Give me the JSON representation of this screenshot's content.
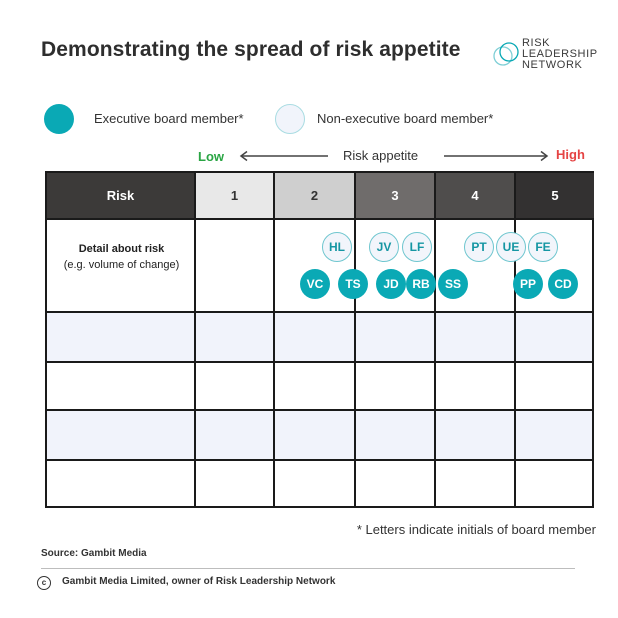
{
  "title": "Demonstrating the spread of risk appetite",
  "logo": {
    "line1": "RISK",
    "line2": "LEADERSHIP",
    "line3": "NETWORK"
  },
  "legend": {
    "executive_label": "Executive board member*",
    "nonexecutive_label": "Non-executive board member*"
  },
  "axis": {
    "low": "Low",
    "center": "Risk appetite",
    "high": "High"
  },
  "table": {
    "header": {
      "risk": "Risk",
      "levels": [
        "1",
        "2",
        "3",
        "4",
        "5"
      ]
    },
    "detail_title": "Detail about risk",
    "detail_sub": "(e.g. volume of change)"
  },
  "members": {
    "nonexecutive": [
      "HL",
      "JV",
      "LF",
      "PT",
      "UE",
      "FE"
    ],
    "executive": [
      "VC",
      "TS",
      "JD",
      "RB",
      "SS",
      "PP",
      "CD"
    ]
  },
  "footnote": "* Letters indicate initials of board member",
  "source": "Source: Gambit Media",
  "copyright": "Gambit Media Limited, owner of Risk Leadership Network",
  "colors": {
    "executive": "#0aa9b5",
    "nonexecutive_fill": "#f2f5fb",
    "low": "#2aa544",
    "high": "#e54444",
    "header_dark": "#3c3a39",
    "level1": "#e8e8e8",
    "level2": "#cfcfcf",
    "level3": "#6f6c6b",
    "level4": "#4f4d4c",
    "level5": "#333131"
  }
}
